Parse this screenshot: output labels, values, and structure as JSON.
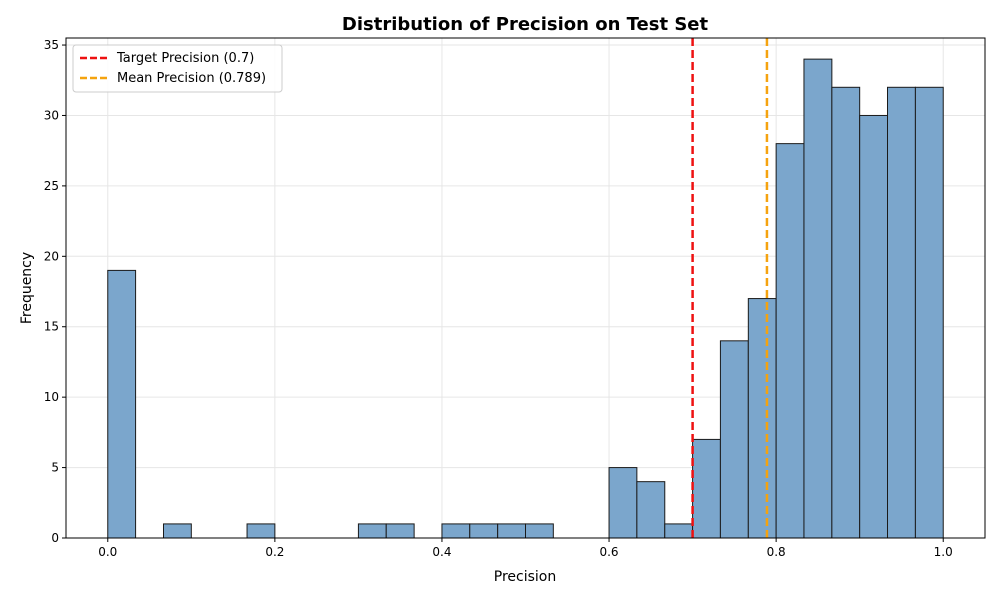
{
  "chart_data": {
    "type": "bar",
    "title": "Distribution of Precision on Test Set",
    "xlabel": "Precision",
    "ylabel": "Frequency",
    "xlim": [
      -0.05,
      1.05
    ],
    "ylim": [
      0,
      35.5
    ],
    "xticks": [
      0.0,
      0.2,
      0.4,
      0.6,
      0.8,
      1.0
    ],
    "xtick_labels": [
      "0.0",
      "0.2",
      "0.4",
      "0.6",
      "0.8",
      "1.0"
    ],
    "yticks": [
      0,
      5,
      10,
      15,
      20,
      25,
      30,
      35
    ],
    "ytick_labels": [
      "0",
      "5",
      "10",
      "15",
      "20",
      "25",
      "30",
      "35"
    ],
    "grid": true,
    "bin_edges": [
      0.0,
      0.0333,
      0.0667,
      0.1,
      0.1333,
      0.1667,
      0.2,
      0.2333,
      0.2667,
      0.3,
      0.3333,
      0.3667,
      0.4,
      0.4333,
      0.4667,
      0.5,
      0.5333,
      0.5667,
      0.6,
      0.6333,
      0.6667,
      0.7,
      0.7333,
      0.7667,
      0.8,
      0.8333,
      0.8667,
      0.9,
      0.9333,
      0.9667,
      1.0
    ],
    "values": [
      19,
      0,
      1,
      0,
      0,
      1,
      0,
      0,
      0,
      1,
      1,
      0,
      1,
      1,
      1,
      1,
      0,
      0,
      5,
      4,
      1,
      7,
      14,
      17,
      28,
      34,
      32,
      30,
      32,
      32
    ],
    "bar_color": "#7ba6cc",
    "bar_edge_color": "#1a1a1a",
    "reference_lines": [
      {
        "label": "Target Precision (0.7)",
        "x": 0.7,
        "color": "#ee1111",
        "style": "dashed"
      },
      {
        "label": "Mean Precision (0.789)",
        "x": 0.789,
        "color": "#f5a30f",
        "style": "dashed"
      }
    ],
    "legend_position": "top-left"
  }
}
